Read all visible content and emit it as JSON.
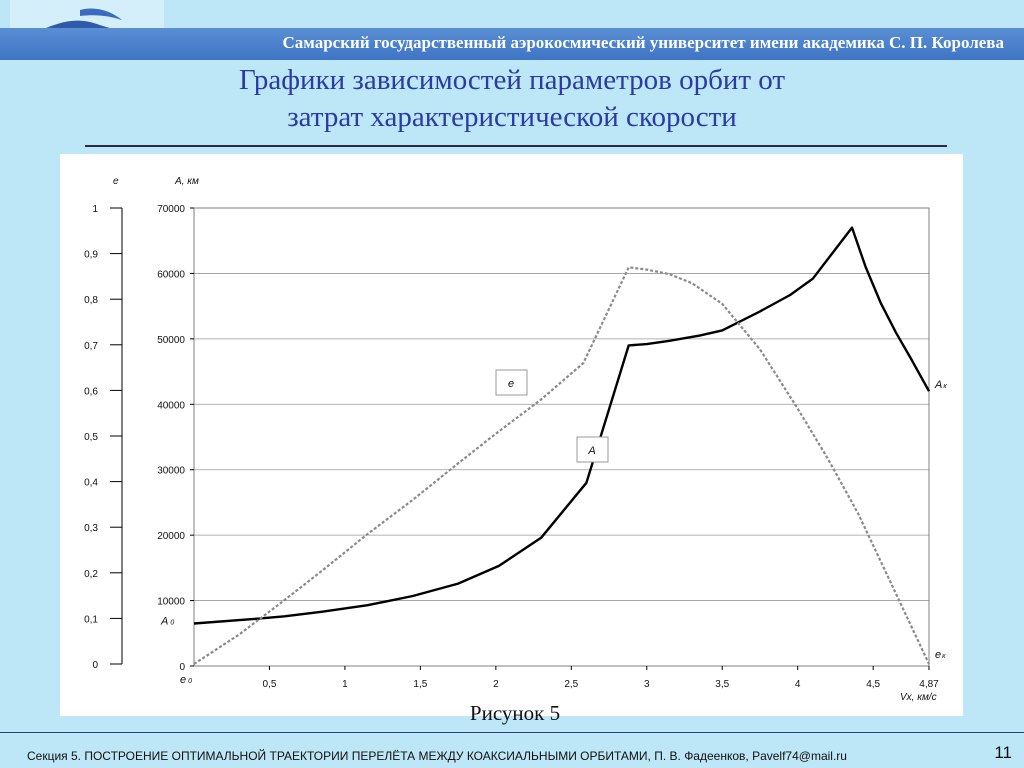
{
  "header": {
    "university": "Самарский государственный аэрокосмический университет имени академика С. П. Королева"
  },
  "title": {
    "line1": "Графики зависимостей параметров орбит от",
    "line2": "затрат характеристической скорости"
  },
  "caption": "Рисунок 5",
  "footer": {
    "text": "Секция 5. ПОСТРОЕНИЕ ОПТИМАЛЬНОЙ ТРАЕКТОРИИ ПЕРЕЛЁТА МЕЖДУ КОАКСИАЛЬНЫМИ ОРБИТАМИ, П. В. Фадеенков, Pavelf74@mail.ru",
    "page_number": "11"
  },
  "chart_data": {
    "type": "line",
    "xlabel": "Vx, км/с",
    "y_left_label": "e",
    "y_right_label": "A, км",
    "xlim": [
      0,
      4.87
    ],
    "x_ticks": [
      "0,5",
      "1",
      "1,5",
      "2",
      "2,5",
      "3",
      "3,5",
      "4",
      "4,5",
      "4,87"
    ],
    "x_tick_values": [
      0.5,
      1,
      1.5,
      2,
      2.5,
      3,
      3.5,
      4,
      4.5,
      4.87
    ],
    "e_axis": {
      "ylim": [
        0,
        1
      ],
      "ticks": [
        "0",
        "0,1",
        "0,2",
        "0,3",
        "0,4",
        "0,5",
        "0,6",
        "0,7",
        "0,8",
        "0,9",
        "1"
      ],
      "tick_values": [
        0,
        0.1,
        0.2,
        0.3,
        0.4,
        0.5,
        0.6,
        0.7,
        0.8,
        0.9,
        1
      ]
    },
    "A_axis": {
      "ylim": [
        0,
        70000
      ],
      "ticks": [
        "0",
        "10000",
        "20000",
        "30000",
        "40000",
        "50000",
        "60000",
        "70000"
      ],
      "tick_values": [
        0,
        10000,
        20000,
        30000,
        40000,
        50000,
        60000,
        70000
      ]
    },
    "grid": true,
    "series": [
      {
        "name": "A",
        "axis": "A",
        "color": "#000000",
        "style": "solid",
        "x": [
          0,
          0.4,
          0.6,
          0.85,
          1.15,
          1.45,
          1.75,
          2.02,
          2.3,
          2.6,
          2.88,
          3.0,
          3.15,
          3.35,
          3.5,
          3.75,
          3.95,
          4.1,
          4.2,
          4.36,
          4.45,
          4.55,
          4.65,
          4.75,
          4.87
        ],
        "values": [
          6500,
          7200,
          7600,
          8300,
          9300,
          10700,
          12600,
          15300,
          19600,
          28000,
          49000,
          49200,
          49700,
          50500,
          51300,
          54200,
          56700,
          59200,
          62200,
          67000,
          61000,
          55500,
          51000,
          47000,
          42000
        ],
        "end_label": "A",
        "end_sub": "к",
        "start_label": "A",
        "start_sub": "0"
      },
      {
        "name": "e",
        "axis": "e",
        "color": "#8a8a8a",
        "style": "dashed",
        "x": [
          0,
          0.3,
          0.58,
          0.85,
          1.15,
          1.45,
          1.75,
          2.0,
          2.3,
          2.58,
          2.88,
          3.0,
          3.15,
          3.3,
          3.5,
          3.75,
          4.0,
          4.2,
          4.4,
          4.6,
          4.87
        ],
        "values": [
          0,
          0.065,
          0.135,
          0.205,
          0.285,
          0.36,
          0.44,
          0.505,
          0.58,
          0.66,
          0.87,
          0.865,
          0.855,
          0.835,
          0.79,
          0.69,
          0.56,
          0.45,
          0.33,
          0.19,
          0
        ],
        "end_label": "e",
        "end_sub": "к",
        "start_label": "e",
        "start_sub": "0"
      }
    ]
  }
}
